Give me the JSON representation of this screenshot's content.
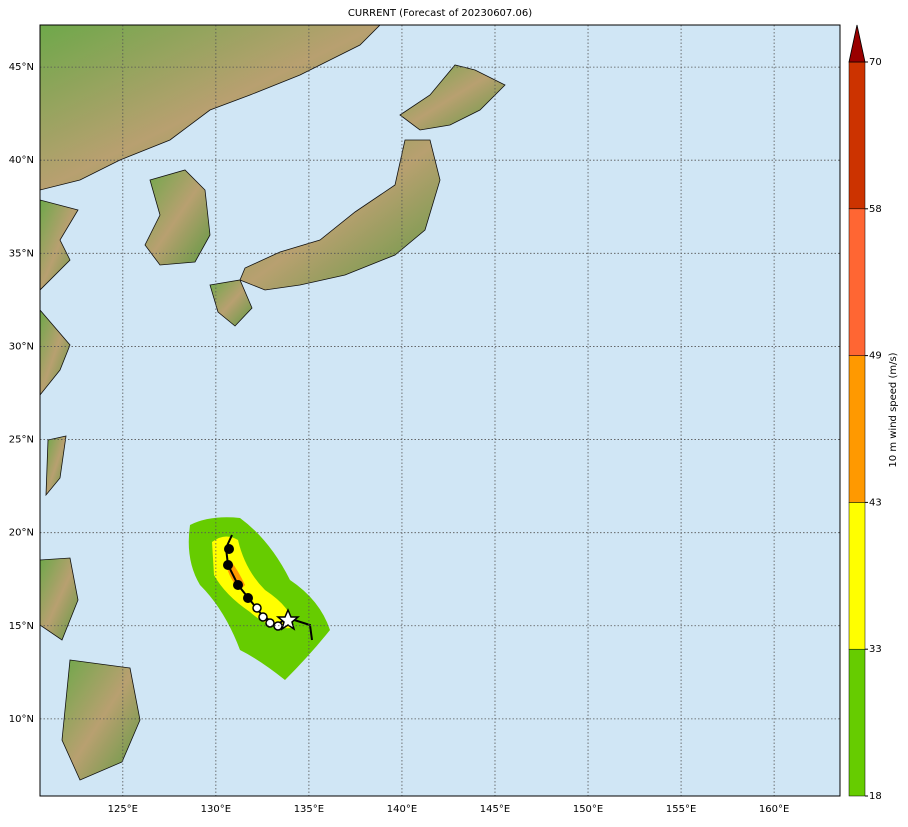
{
  "chart_data": {
    "type": "map",
    "title": "CURRENT (Forecast of 20230607.06)",
    "lonlim": [
      120.55,
      163.54
    ],
    "latlim": [
      5.86,
      47.26
    ],
    "xticks": [
      {
        "value": 125,
        "label": "125°E"
      },
      {
        "value": 130,
        "label": "130°E"
      },
      {
        "value": 135,
        "label": "135°E"
      },
      {
        "value": 140,
        "label": "140°E"
      },
      {
        "value": 145,
        "label": "145°E"
      },
      {
        "value": 150,
        "label": "150°E"
      },
      {
        "value": 155,
        "label": "155°E"
      },
      {
        "value": 160,
        "label": "160°E"
      }
    ],
    "yticks": [
      {
        "value": 10,
        "label": "10°N"
      },
      {
        "value": 15,
        "label": "15°N"
      },
      {
        "value": 20,
        "label": "20°N"
      },
      {
        "value": 25,
        "label": "25°N"
      },
      {
        "value": 30,
        "label": "30°N"
      },
      {
        "value": 35,
        "label": "35°N"
      },
      {
        "value": 40,
        "label": "40°N"
      },
      {
        "value": 45,
        "label": "45°N"
      }
    ],
    "grid": true,
    "colorbar": {
      "label": "10 m wind speed (m/s)",
      "ticks": [
        18,
        33,
        43,
        49,
        58,
        70
      ],
      "colors": [
        "#66cc00",
        "#ffff00",
        "#ff9900",
        "#ff6633",
        "#cc3300"
      ],
      "extend_color": "#990000"
    }
  }
}
